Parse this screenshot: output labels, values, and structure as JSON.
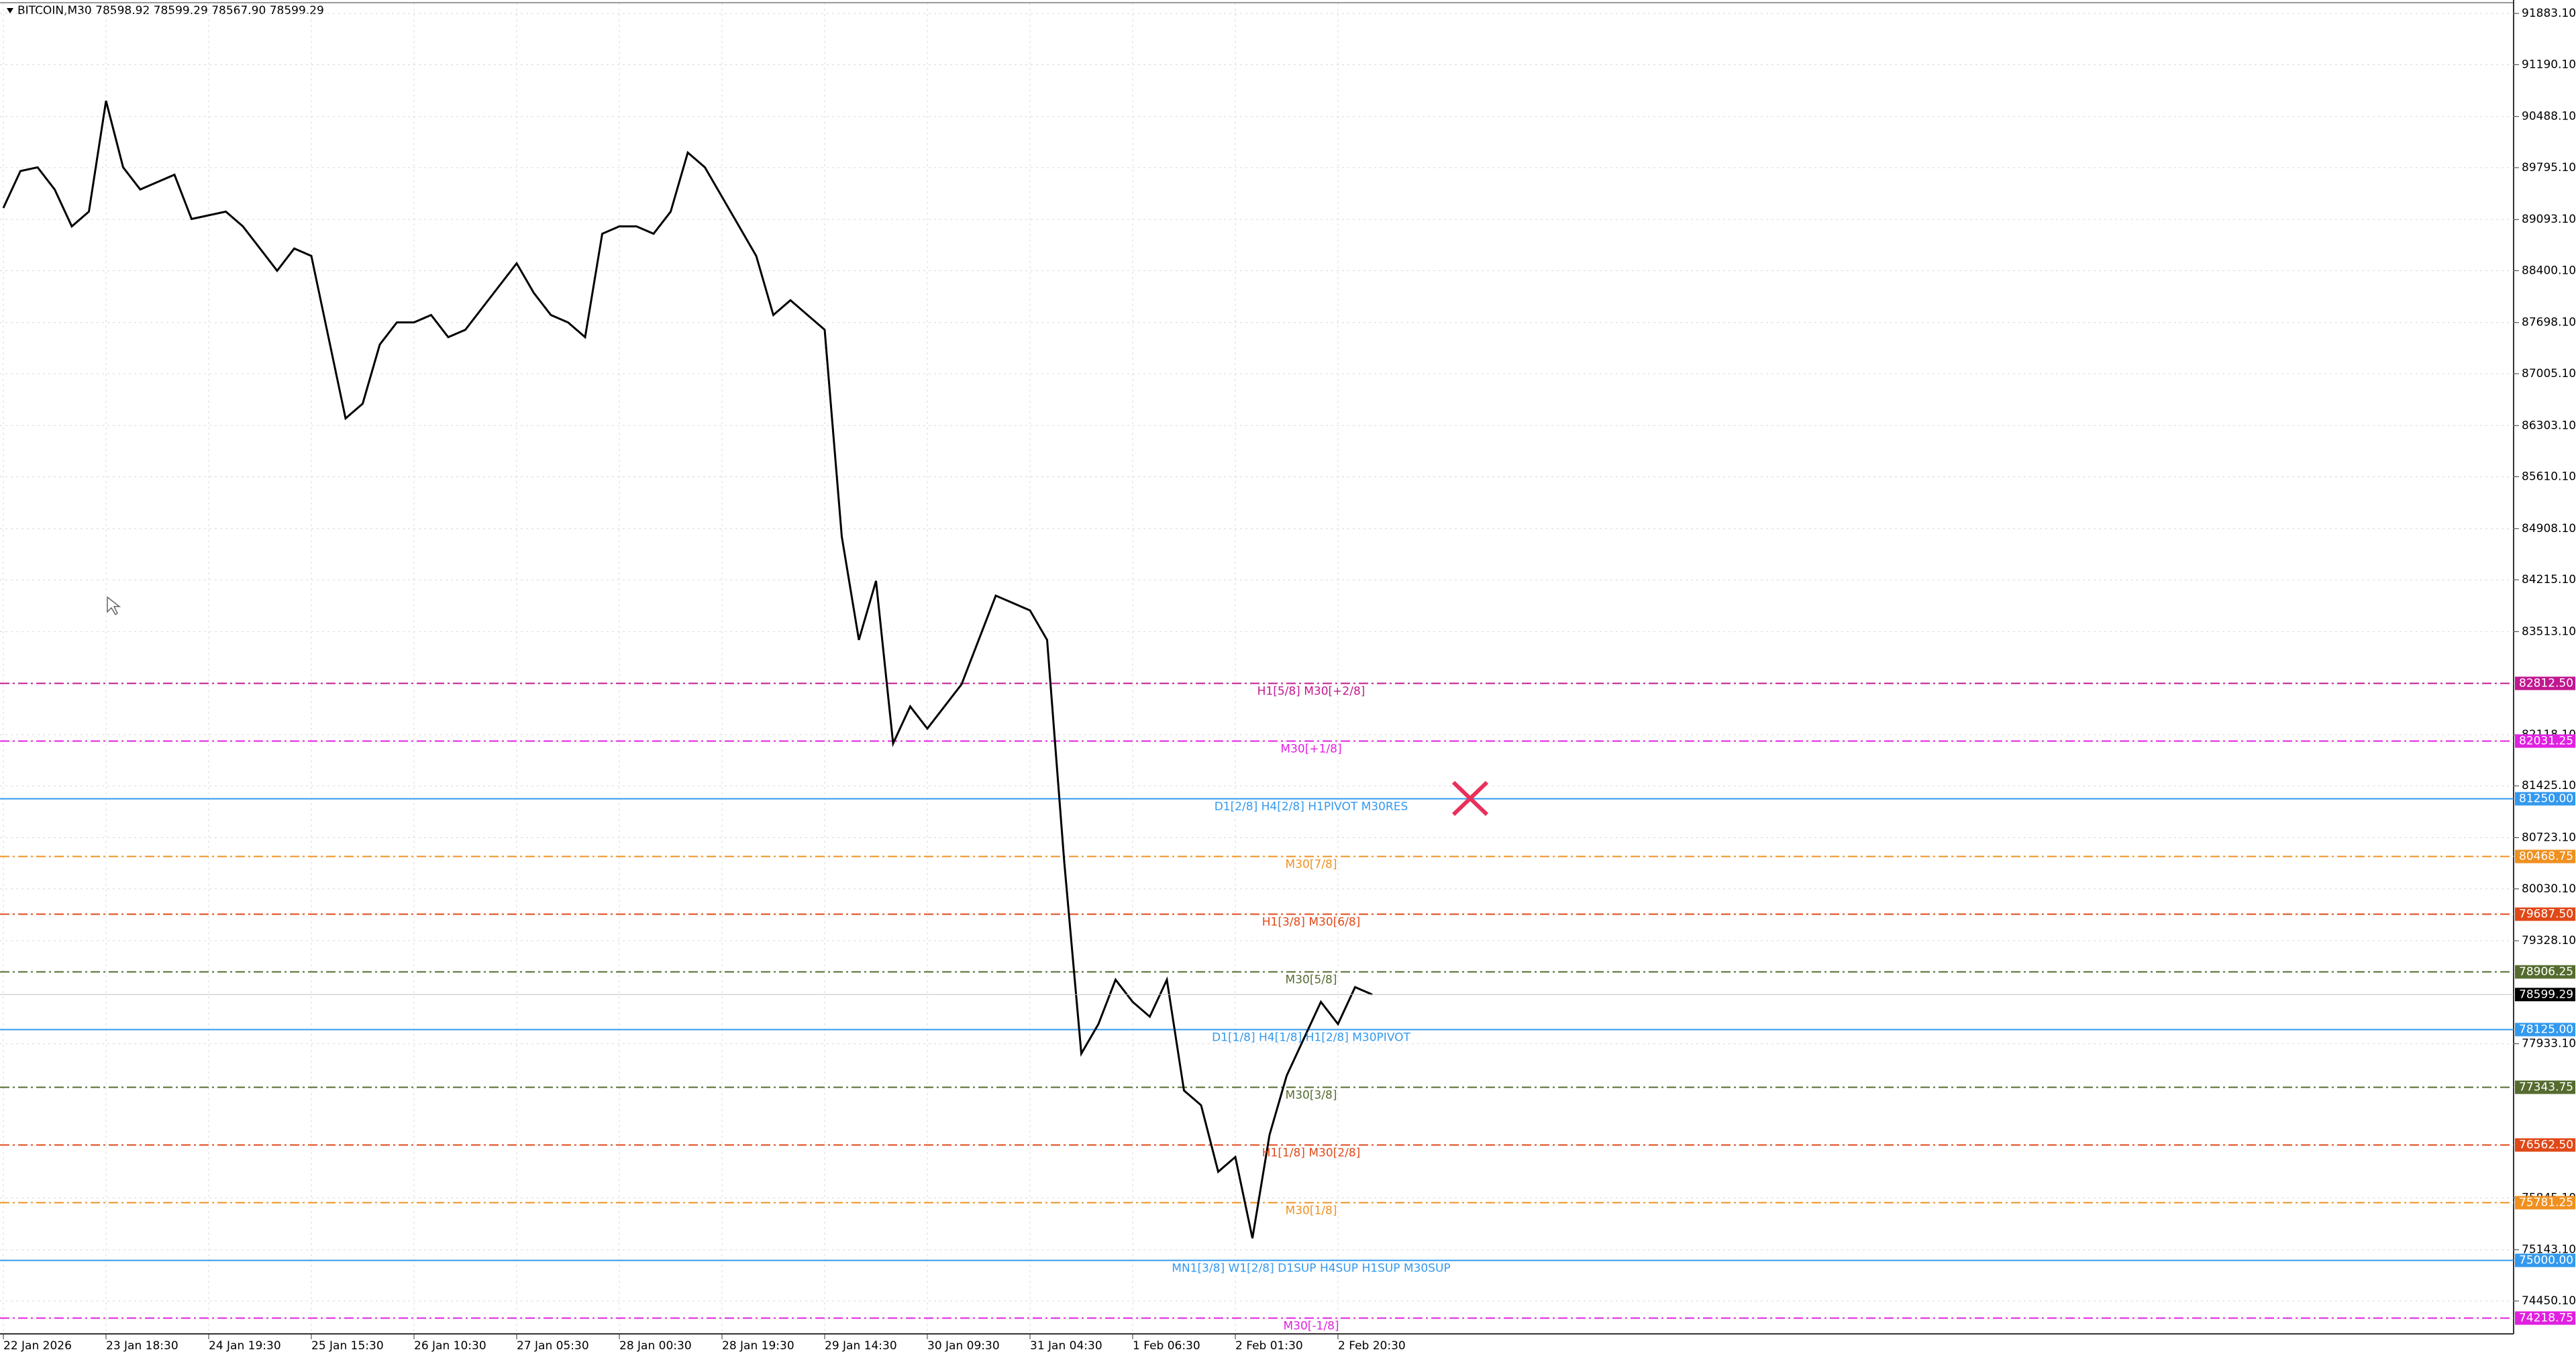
{
  "chart_data": {
    "type": "line",
    "title": "BITCOIN,M30  78598.92 78599.29 78567.90 78599.29",
    "categories": [
      "22 Jan 2026",
      null,
      null,
      null,
      null,
      null,
      "23 Jan 18:30",
      null,
      null,
      null,
      null,
      null,
      "24 Jan 19:30",
      null,
      null,
      null,
      null,
      null,
      "25 Jan 15:30",
      null,
      null,
      null,
      null,
      null,
      "26 Jan 10:30",
      null,
      null,
      null,
      null,
      null,
      "27 Jan 05:30",
      null,
      null,
      null,
      null,
      null,
      "28 Jan 00:30",
      null,
      null,
      null,
      null,
      null,
      "28 Jan 19:30",
      null,
      null,
      null,
      null,
      null,
      "29 Jan 14:30",
      null,
      null,
      null,
      null,
      null,
      "30 Jan 09:30",
      null,
      null,
      null,
      null,
      null,
      "31 Jan 04:30",
      null,
      null,
      null,
      null,
      null,
      "1 Feb 06:30",
      null,
      null,
      null,
      null,
      null,
      "2 Feb 01:30",
      null,
      null,
      null,
      null,
      null,
      "2 Feb 20:30",
      null,
      null
    ],
    "series": [
      {
        "name": "BITCOIN",
        "color": "#000000",
        "values": [
          89250,
          89750,
          89800,
          89500,
          89000,
          89200,
          90700,
          89800,
          89500,
          89600,
          89700,
          89100,
          89150,
          89200,
          89000,
          88700,
          88400,
          88700,
          88600,
          87500,
          86400,
          86600,
          87400,
          87700,
          87700,
          87800,
          87500,
          87600,
          87900,
          88200,
          88500,
          88100,
          87800,
          87700,
          87500,
          88900,
          89000,
          89000,
          88900,
          89200,
          90000,
          89800,
          89400,
          89000,
          88600,
          87800,
          88000,
          87800,
          87600,
          84800,
          83400,
          84200,
          82000,
          82500,
          82200,
          82500,
          82800,
          83400,
          84000,
          83900,
          83800,
          83400,
          80400,
          77800,
          78200,
          78800,
          78500,
          78300,
          78800,
          77300,
          77100,
          76200,
          76400,
          75300,
          76700,
          77500,
          78000,
          78500,
          78200,
          78700,
          78599.29
        ]
      }
    ],
    "ylim": [
      74005,
      92020
    ],
    "yticks": [
      {
        "value": 91883.1,
        "label": "91883.10"
      },
      {
        "value": 91190.1,
        "label": "91190.10"
      },
      {
        "value": 90488.1,
        "label": "90488.10"
      },
      {
        "value": 89795.1,
        "label": "89795.10"
      },
      {
        "value": 89093.1,
        "label": "89093.10"
      },
      {
        "value": 88400.1,
        "label": "88400.10"
      },
      {
        "value": 87698.1,
        "label": "87698.10"
      },
      {
        "value": 87005.1,
        "label": "87005.10"
      },
      {
        "value": 86303.1,
        "label": "86303.10"
      },
      {
        "value": 85610.1,
        "label": "85610.10"
      },
      {
        "value": 84908.1,
        "label": "84908.10"
      },
      {
        "value": 84215.1,
        "label": "84215.10"
      },
      {
        "value": 83513.1,
        "label": "83513.10"
      },
      {
        "value": 82118.1,
        "label": "82118.10"
      },
      {
        "value": 81425.1,
        "label": "81425.10"
      },
      {
        "value": 80723.1,
        "label": "80723.10"
      },
      {
        "value": 80030.1,
        "label": "80030.10"
      },
      {
        "value": 79328.1,
        "label": "79328.10"
      },
      {
        "value": 77933.1,
        "label": "77933.10"
      },
      {
        "value": 75845.1,
        "label": "75845.10"
      },
      {
        "value": 75143.1,
        "label": "75143.10"
      },
      {
        "value": 74450.1,
        "label": "74450.10"
      }
    ],
    "grid": true,
    "current_price": {
      "value": 78599.29,
      "label": "78599.29"
    },
    "levels": [
      {
        "value": 82812.5,
        "price_label": "82812.50",
        "label": "H1[5/8] M30[+2/8]",
        "color": "#c01890",
        "style": "dashdot"
      },
      {
        "value": 82031.25,
        "price_label": "82031.25",
        "label": "M30[+1/8]",
        "color": "#e020e0",
        "style": "dashdot"
      },
      {
        "value": 81250,
        "price_label": "81250.00",
        "label": "D1[2/8] H4[2/8] H1PIVOT M30RES",
        "color": "#3399ee",
        "style": "solid"
      },
      {
        "value": 80468.75,
        "price_label": "80468.75",
        "label": "M30[7/8]",
        "color": "#f09020",
        "style": "dashdot"
      },
      {
        "value": 79687.5,
        "price_label": "79687.50",
        "label": "H1[3/8] M30[6/8]",
        "color": "#e04818",
        "style": "dashdot"
      },
      {
        "value": 78906.25,
        "price_label": "78906.25",
        "label": "M30[5/8]",
        "color": "#556b2f",
        "style": "dashdot"
      },
      {
        "value": 78125,
        "price_label": "78125.00",
        "label": "D1[1/8] H4[1/8] H1[2/8] M30PIVOT",
        "color": "#3399ee",
        "style": "solid"
      },
      {
        "value": 77343.75,
        "price_label": "77343.75",
        "label": "M30[3/8]",
        "color": "#556b2f",
        "style": "dashdot"
      },
      {
        "value": 76562.5,
        "price_label": "76562.50",
        "label": "H1[1/8] M30[2/8]",
        "color": "#e04818",
        "style": "dashdot"
      },
      {
        "value": 75781.25,
        "price_label": "75781.25",
        "label": "M30[1/8]",
        "color": "#f09020",
        "style": "dashdot"
      },
      {
        "value": 75000,
        "price_label": "75000.00",
        "label": "MN1[3/8] W1[2/8] D1SUP H4SUP H1SUP M30SUP",
        "color": "#3399ee",
        "style": "solid"
      },
      {
        "value": 74218.75,
        "price_label": "74218.75",
        "label": "M30[-1/8]",
        "color": "#e020e0",
        "style": "dashdot"
      }
    ]
  }
}
